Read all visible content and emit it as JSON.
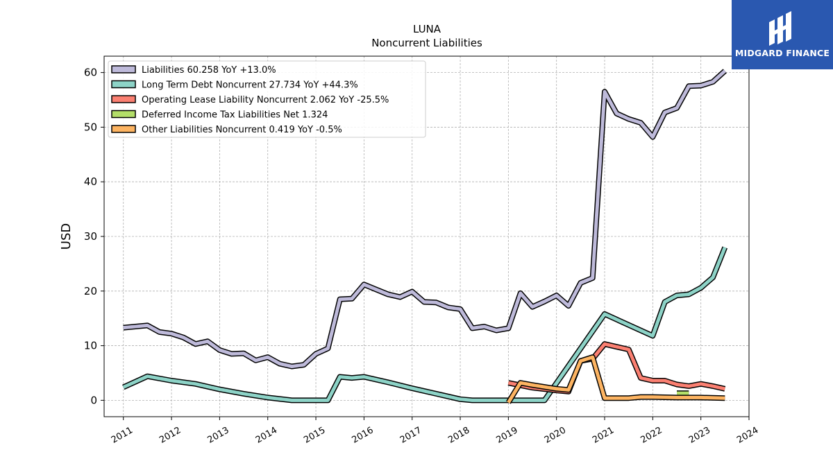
{
  "chart_data": {
    "type": "line",
    "title": "LUNA",
    "subtitle": "Noncurrent  Liabilities",
    "xlabel": "",
    "ylabel": "USD",
    "xlim": [
      2010.6,
      2024.0
    ],
    "ylim": [
      -3,
      63
    ],
    "x_ticks": [
      "2011",
      "2012",
      "2013",
      "2014",
      "2015",
      "2016",
      "2017",
      "2018",
      "2019",
      "2020",
      "2021",
      "2022",
      "2023",
      "2024"
    ],
    "y_ticks": [
      0,
      10,
      20,
      30,
      40,
      50,
      60
    ],
    "grid": true,
    "legend_position": "top-left",
    "series": [
      {
        "name": "Liabilities",
        "legend": "Liabilities  60.258 YoY +13.0%",
        "color": "#bebada",
        "x": [
          2011.0,
          2011.5,
          2011.75,
          2012.0,
          2012.25,
          2012.5,
          2012.75,
          2013.0,
          2013.25,
          2013.5,
          2013.75,
          2014.0,
          2014.25,
          2014.5,
          2014.75,
          2015.0,
          2015.25,
          2015.5,
          2015.75,
          2016.0,
          2016.25,
          2016.5,
          2016.75,
          2017.0,
          2017.25,
          2017.5,
          2017.75,
          2018.0,
          2018.25,
          2018.5,
          2018.75,
          2019.0,
          2019.25,
          2019.5,
          2019.75,
          2020.0,
          2020.25,
          2020.5,
          2020.75,
          2021.0,
          2021.25,
          2021.5,
          2021.75,
          2022.0,
          2022.25,
          2022.5,
          2022.75,
          2023.0,
          2023.25,
          2023.5
        ],
        "y": [
          13.3,
          13.7,
          12.5,
          12.2,
          11.5,
          10.3,
          10.8,
          9.2,
          8.5,
          8.6,
          7.3,
          7.9,
          6.7,
          6.2,
          6.5,
          8.5,
          9.5,
          18.5,
          18.6,
          21.2,
          20.3,
          19.4,
          18.9,
          19.9,
          18.0,
          17.9,
          17.0,
          16.7,
          13.2,
          13.5,
          12.8,
          13.2,
          19.6,
          17.1,
          18.1,
          19.2,
          17.3,
          21.5,
          22.4,
          56.5,
          52.5,
          51.5,
          50.8,
          48.2,
          52.7,
          53.5,
          57.5,
          57.6,
          58.3,
          60.3
        ]
      },
      {
        "name": "Long Term Debt Noncurrent",
        "legend": "Long Term Debt Noncurrent  27.734 YoY +44.3%",
        "color": "#8dd3c7",
        "x": [
          2011.0,
          2011.5,
          2012.0,
          2012.5,
          2013.0,
          2013.5,
          2014.0,
          2014.5,
          2015.0,
          2015.25,
          2015.5,
          2015.75,
          2016.0,
          2016.5,
          2017.0,
          2017.5,
          2018.0,
          2018.25,
          2018.5,
          2019.0,
          2019.5,
          2019.75,
          2021.0,
          2022.0,
          2022.25,
          2022.5,
          2022.75,
          2023.0,
          2023.25,
          2023.5
        ],
        "y": [
          2.4,
          4.4,
          3.6,
          3.0,
          2.0,
          1.2,
          0.5,
          0.0,
          0.0,
          0.0,
          4.3,
          4.1,
          4.3,
          3.3,
          2.2,
          1.2,
          0.2,
          0.0,
          0.0,
          0.0,
          0.0,
          0.0,
          15.8,
          11.8,
          18.0,
          19.2,
          19.4,
          20.6,
          22.5,
          28.0
        ]
      },
      {
        "name": "Operating Lease Liability Noncurrent",
        "legend": "Operating Lease Liability Noncurrent  2.062 YoY -25.5%",
        "color": "#fb8072",
        "x": [
          2019.0,
          2019.5,
          2020.0,
          2020.25,
          2020.5,
          2020.75,
          2021.0,
          2021.25,
          2021.5,
          2021.75,
          2022.0,
          2022.25,
          2022.5,
          2022.75,
          2023.0,
          2023.25,
          2023.5
        ],
        "y": [
          3.2,
          2.3,
          1.8,
          1.6,
          7.2,
          7.6,
          10.3,
          9.8,
          9.3,
          4.1,
          3.6,
          3.6,
          2.9,
          2.6,
          3.0,
          2.6,
          2.1
        ]
      },
      {
        "name": "Deferred Income Tax Liabilities Net",
        "legend": "Deferred Income Tax Liabilities Net  1.324",
        "color": "#b3de69",
        "x": [
          2022.5,
          2022.75
        ],
        "y": [
          1.3,
          1.3
        ]
      },
      {
        "name": "Other Liabilities Noncurrent",
        "legend": "Other Liabilities Noncurrent  0.419 YoY -0.5%",
        "color": "#fdb462",
        "x": [
          2019.0,
          2019.25,
          2019.5,
          2020.0,
          2020.25,
          2020.5,
          2020.75,
          2021.0,
          2021.25,
          2021.5,
          2021.75,
          2022.0,
          2022.5,
          2023.0,
          2023.5
        ],
        "y": [
          -0.4,
          3.2,
          2.8,
          2.1,
          1.9,
          7.2,
          7.9,
          0.4,
          0.4,
          0.4,
          0.6,
          0.6,
          0.5,
          0.5,
          0.4
        ]
      }
    ]
  },
  "logo": {
    "text": "MIDGARD FINANCE",
    "color": "#2a58b0"
  }
}
